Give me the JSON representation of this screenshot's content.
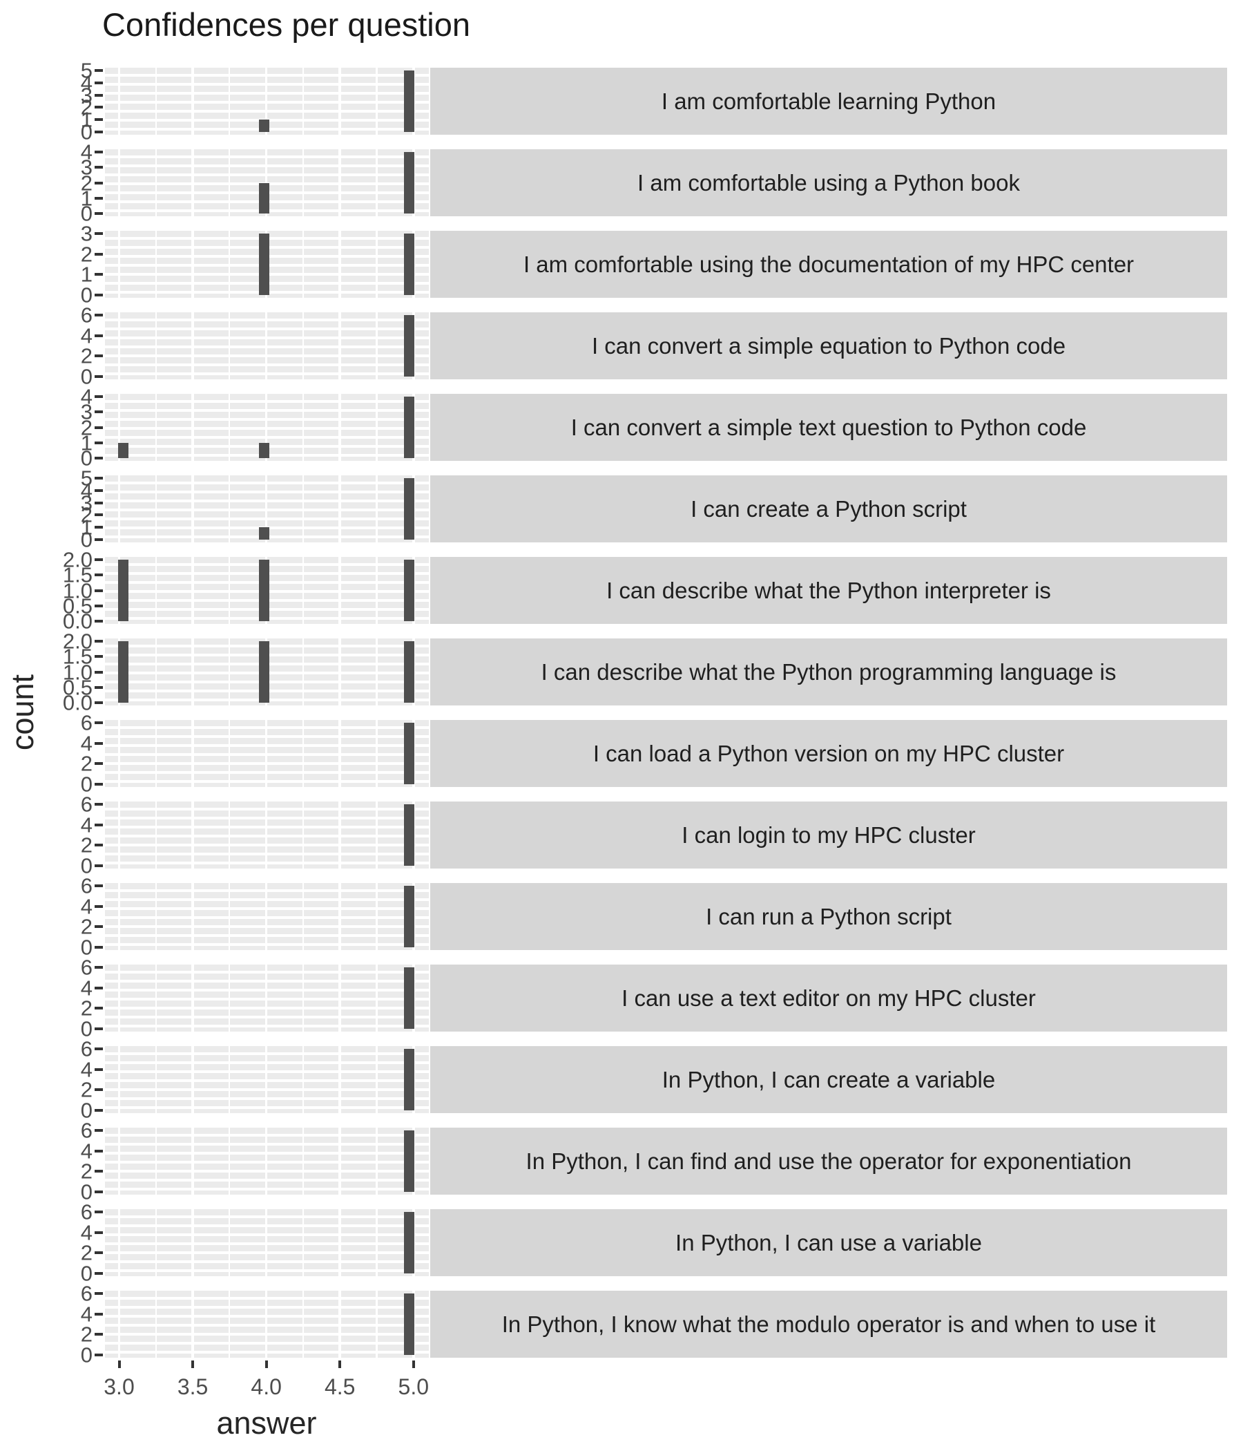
{
  "title": "Confidences per question",
  "axes": {
    "x_label": "answer",
    "y_label": "count",
    "x_ticks": [
      "3.0",
      "3.5",
      "4.0",
      "4.5",
      "5.0"
    ]
  },
  "chart_data": {
    "type": "bar",
    "subtype": "faceted_histogram",
    "title": "Confidences per question",
    "xlabel": "answer",
    "ylabel": "count",
    "x_range": [
      2.9,
      5.1
    ],
    "x_tick_values": [
      3.0,
      3.5,
      4.0,
      4.5,
      5.0
    ],
    "grid": "white-on-grey",
    "legend": "none",
    "facets": [
      {
        "label": "I am comfortable learning Python",
        "y_max": 5,
        "y_ticks": [
          "5",
          "4",
          "3",
          "2",
          "1",
          "0"
        ],
        "bars": [
          {
            "x": 4,
            "count": 1
          },
          {
            "x": 5,
            "count": 5
          }
        ]
      },
      {
        "label": "I am comfortable using a Python book",
        "y_max": 4,
        "y_ticks": [
          "4",
          "3",
          "2",
          "1",
          "0"
        ],
        "bars": [
          {
            "x": 4,
            "count": 2
          },
          {
            "x": 5,
            "count": 4
          }
        ]
      },
      {
        "label": "I am comfortable using the documentation of my HPC center",
        "y_max": 3,
        "y_ticks": [
          "3",
          "2",
          "1",
          "0"
        ],
        "bars": [
          {
            "x": 4,
            "count": 3
          },
          {
            "x": 5,
            "count": 3
          }
        ]
      },
      {
        "label": "I can convert a simple equation to Python code",
        "y_max": 6,
        "y_ticks": [
          "6",
          "4",
          "2",
          "0"
        ],
        "bars": [
          {
            "x": 5,
            "count": 6
          }
        ]
      },
      {
        "label": "I can convert a simple text question to Python code",
        "y_max": 4,
        "y_ticks": [
          "4",
          "3",
          "2",
          "1",
          "0"
        ],
        "bars": [
          {
            "x": 3,
            "count": 1
          },
          {
            "x": 4,
            "count": 1
          },
          {
            "x": 5,
            "count": 4
          }
        ]
      },
      {
        "label": "I can create a Python script",
        "y_max": 5,
        "y_ticks": [
          "5",
          "4",
          "3",
          "2",
          "1",
          "0"
        ],
        "bars": [
          {
            "x": 4,
            "count": 1
          },
          {
            "x": 5,
            "count": 5
          }
        ]
      },
      {
        "label": "I can describe what the Python interpreter is",
        "y_max": 2,
        "y_ticks": [
          "2.0",
          "1.5",
          "1.0",
          "0.5",
          "0.0"
        ],
        "bars": [
          {
            "x": 3,
            "count": 2
          },
          {
            "x": 4,
            "count": 2
          },
          {
            "x": 5,
            "count": 2
          }
        ]
      },
      {
        "label": "I can describe what the Python programming language is",
        "y_max": 2,
        "y_ticks": [
          "2.0",
          "1.5",
          "1.0",
          "0.5",
          "0.0"
        ],
        "bars": [
          {
            "x": 3,
            "count": 2
          },
          {
            "x": 4,
            "count": 2
          },
          {
            "x": 5,
            "count": 2
          }
        ]
      },
      {
        "label": "I can load a Python version on my HPC cluster",
        "y_max": 6,
        "y_ticks": [
          "6",
          "4",
          "2",
          "0"
        ],
        "bars": [
          {
            "x": 5,
            "count": 6
          }
        ]
      },
      {
        "label": "I can login to my HPC cluster",
        "y_max": 6,
        "y_ticks": [
          "6",
          "4",
          "2",
          "0"
        ],
        "bars": [
          {
            "x": 5,
            "count": 6
          }
        ]
      },
      {
        "label": "I can run a Python script",
        "y_max": 6,
        "y_ticks": [
          "6",
          "4",
          "2",
          "0"
        ],
        "bars": [
          {
            "x": 5,
            "count": 6
          }
        ]
      },
      {
        "label": "I can use a text editor on my HPC cluster",
        "y_max": 6,
        "y_ticks": [
          "6",
          "4",
          "2",
          "0"
        ],
        "bars": [
          {
            "x": 5,
            "count": 6
          }
        ]
      },
      {
        "label": "In Python, I can create a variable",
        "y_max": 6,
        "y_ticks": [
          "6",
          "4",
          "2",
          "0"
        ],
        "bars": [
          {
            "x": 5,
            "count": 6
          }
        ]
      },
      {
        "label": "In Python, I can find and use the operator for exponentiation",
        "y_max": 6,
        "y_ticks": [
          "6",
          "4",
          "2",
          "0"
        ],
        "bars": [
          {
            "x": 5,
            "count": 6
          }
        ]
      },
      {
        "label": "In Python, I can use a variable",
        "y_max": 6,
        "y_ticks": [
          "6",
          "4",
          "2",
          "0"
        ],
        "bars": [
          {
            "x": 5,
            "count": 6
          }
        ]
      },
      {
        "label": "In Python, I know what the modulo operator is and when to use it",
        "y_max": 6,
        "y_ticks": [
          "6",
          "4",
          "2",
          "0"
        ],
        "bars": [
          {
            "x": 5,
            "count": 6
          }
        ]
      }
    ],
    "colors": {
      "bar": "#4f4f4f",
      "panel_background": "#ebebeb",
      "grid_line": "#ffffff",
      "strip_background": "#d6d6d6",
      "strip_text": "#1f1f1f",
      "axis_text": "#4d4d4d",
      "title_text": "#1a1a1a"
    }
  }
}
